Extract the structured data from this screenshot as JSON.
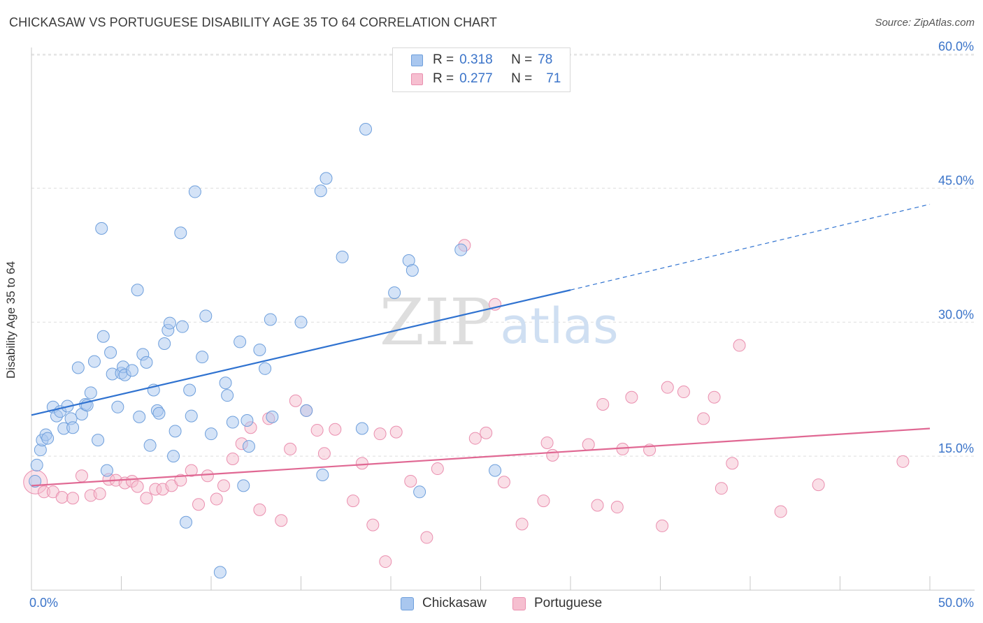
{
  "title": "CHICKASAW VS PORTUGUESE DISABILITY AGE 35 TO 64 CORRELATION CHART",
  "source": "Source: ZipAtlas.com",
  "watermark": {
    "zip": "ZIP",
    "atlas": "atlas"
  },
  "colors": {
    "chickasaw_fill": "#a9c7ef",
    "chickasaw_stroke": "#6e9fdc",
    "chickasaw_line": "#2f72d0",
    "portuguese_fill": "#f6bfd0",
    "portuguese_stroke": "#ea8faf",
    "portuguese_line": "#e06893",
    "axis_text": "#3b74c9",
    "grid": "#dddddd"
  },
  "legend": {
    "rows": [
      {
        "r_label": "R =",
        "r_value": "0.318",
        "n_label": "N =",
        "n_value": "78"
      },
      {
        "r_label": "R =",
        "r_value": "0.277",
        "n_label": "N =",
        "n_value": "71"
      }
    ]
  },
  "chart_data": {
    "type": "scatter",
    "title": "CHICKASAW VS PORTUGUESE DISABILITY AGE 35 TO 64 CORRELATION CHART",
    "xlabel": "",
    "ylabel": "Disability Age 35 to 64",
    "xlim": [
      0,
      50
    ],
    "ylim": [
      0,
      62
    ],
    "x_tick_labels": [
      "0.0%",
      "50.0%"
    ],
    "y_ticks": [
      15,
      30,
      45,
      60
    ],
    "y_tick_labels": [
      "15.0%",
      "30.0%",
      "45.0%",
      "60.0%"
    ],
    "grid": true,
    "legend_position": "top-center",
    "series": [
      {
        "name": "Chickasaw",
        "r": 0.318,
        "n": 78,
        "trend": {
          "x0": 0,
          "y0": 19.6,
          "x1": 30,
          "y1": 33.6,
          "dashed_to": {
            "x": 50,
            "y": 43.2
          }
        },
        "points": [
          [
            0.2,
            12.2
          ],
          [
            0.3,
            14.0
          ],
          [
            0.5,
            15.7
          ],
          [
            0.6,
            16.8
          ],
          [
            0.8,
            17.4
          ],
          [
            0.9,
            17.0
          ],
          [
            1.2,
            20.5
          ],
          [
            1.4,
            19.5
          ],
          [
            1.6,
            20.0
          ],
          [
            1.8,
            18.1
          ],
          [
            2.0,
            20.6
          ],
          [
            2.2,
            19.2
          ],
          [
            2.3,
            18.2
          ],
          [
            2.6,
            24.9
          ],
          [
            2.8,
            19.7
          ],
          [
            3.0,
            20.8
          ],
          [
            3.1,
            20.7
          ],
          [
            3.3,
            22.1
          ],
          [
            3.5,
            25.6
          ],
          [
            3.7,
            16.8
          ],
          [
            3.9,
            40.5
          ],
          [
            4.0,
            28.4
          ],
          [
            4.2,
            13.4
          ],
          [
            4.4,
            26.6
          ],
          [
            4.5,
            24.2
          ],
          [
            4.8,
            20.5
          ],
          [
            5.0,
            24.3
          ],
          [
            5.1,
            25.0
          ],
          [
            5.2,
            24.1
          ],
          [
            5.6,
            24.6
          ],
          [
            5.9,
            33.6
          ],
          [
            6.0,
            19.4
          ],
          [
            6.2,
            26.4
          ],
          [
            6.4,
            25.5
          ],
          [
            6.6,
            16.2
          ],
          [
            6.8,
            22.4
          ],
          [
            7.0,
            20.1
          ],
          [
            7.1,
            19.8
          ],
          [
            7.4,
            27.6
          ],
          [
            7.6,
            29.1
          ],
          [
            7.7,
            29.9
          ],
          [
            7.9,
            15.0
          ],
          [
            8.0,
            17.8
          ],
          [
            8.3,
            40.0
          ],
          [
            8.4,
            29.5
          ],
          [
            8.6,
            7.6
          ],
          [
            8.8,
            22.4
          ],
          [
            8.9,
            19.5
          ],
          [
            9.1,
            44.6
          ],
          [
            9.5,
            26.1
          ],
          [
            9.7,
            30.7
          ],
          [
            10.0,
            17.5
          ],
          [
            10.5,
            2.0
          ],
          [
            10.8,
            23.2
          ],
          [
            10.9,
            21.8
          ],
          [
            11.2,
            18.8
          ],
          [
            11.6,
            27.8
          ],
          [
            11.8,
            11.7
          ],
          [
            12.0,
            19.0
          ],
          [
            12.1,
            16.1
          ],
          [
            12.7,
            26.9
          ],
          [
            13.0,
            24.8
          ],
          [
            13.3,
            30.3
          ],
          [
            13.4,
            19.4
          ],
          [
            15.0,
            30.0
          ],
          [
            15.3,
            20.1
          ],
          [
            16.1,
            44.7
          ],
          [
            16.2,
            12.9
          ],
          [
            16.4,
            46.1
          ],
          [
            17.3,
            37.3
          ],
          [
            18.4,
            18.1
          ],
          [
            18.6,
            51.6
          ],
          [
            20.2,
            33.3
          ],
          [
            21.0,
            36.9
          ],
          [
            21.2,
            35.8
          ],
          [
            21.6,
            11.0
          ],
          [
            23.9,
            38.1
          ],
          [
            25.8,
            13.4
          ]
        ]
      },
      {
        "name": "Portuguese",
        "r": 0.277,
        "n": 71,
        "trend": {
          "x0": 0,
          "y0": 11.7,
          "x1": 50,
          "y1": 18.1
        },
        "points": [
          [
            0.3,
            12.1
          ],
          [
            0.7,
            11.0
          ],
          [
            1.2,
            11.0
          ],
          [
            1.7,
            10.4
          ],
          [
            2.3,
            10.3
          ],
          [
            2.8,
            12.8
          ],
          [
            3.3,
            10.6
          ],
          [
            3.8,
            10.8
          ],
          [
            4.3,
            12.4
          ],
          [
            4.7,
            12.3
          ],
          [
            5.2,
            12.0
          ],
          [
            5.6,
            12.2
          ],
          [
            5.9,
            11.6
          ],
          [
            6.4,
            10.3
          ],
          [
            6.9,
            11.3
          ],
          [
            7.3,
            11.3
          ],
          [
            7.8,
            11.7
          ],
          [
            8.3,
            12.3
          ],
          [
            8.9,
            13.4
          ],
          [
            9.3,
            9.6
          ],
          [
            9.8,
            12.8
          ],
          [
            10.3,
            10.2
          ],
          [
            10.7,
            11.7
          ],
          [
            11.2,
            14.7
          ],
          [
            11.7,
            16.4
          ],
          [
            12.2,
            18.2
          ],
          [
            12.7,
            9.0
          ],
          [
            13.2,
            19.2
          ],
          [
            13.9,
            7.8
          ],
          [
            14.4,
            15.8
          ],
          [
            14.7,
            21.2
          ],
          [
            15.3,
            20.1
          ],
          [
            15.9,
            17.9
          ],
          [
            16.3,
            15.3
          ],
          [
            16.9,
            18.0
          ],
          [
            17.9,
            10.0
          ],
          [
            18.4,
            14.2
          ],
          [
            19.0,
            7.3
          ],
          [
            19.4,
            17.5
          ],
          [
            19.7,
            3.2
          ],
          [
            20.3,
            17.7
          ],
          [
            21.1,
            12.2
          ],
          [
            22.0,
            5.9
          ],
          [
            22.6,
            13.6
          ],
          [
            24.1,
            38.6
          ],
          [
            24.7,
            17.0
          ],
          [
            25.3,
            17.6
          ],
          [
            25.8,
            32.0
          ],
          [
            26.3,
            12.1
          ],
          [
            27.3,
            7.4
          ],
          [
            28.5,
            10.0
          ],
          [
            28.7,
            16.5
          ],
          [
            29.0,
            15.1
          ],
          [
            31.0,
            16.3
          ],
          [
            31.5,
            9.5
          ],
          [
            31.8,
            20.8
          ],
          [
            32.6,
            9.3
          ],
          [
            32.9,
            15.8
          ],
          [
            33.4,
            21.6
          ],
          [
            34.4,
            15.7
          ],
          [
            35.1,
            7.2
          ],
          [
            35.4,
            22.7
          ],
          [
            36.3,
            22.2
          ],
          [
            37.4,
            19.2
          ],
          [
            38.0,
            21.6
          ],
          [
            38.4,
            11.4
          ],
          [
            39.0,
            14.2
          ],
          [
            39.4,
            27.4
          ],
          [
            41.7,
            8.8
          ],
          [
            43.8,
            11.8
          ],
          [
            48.5,
            14.4
          ]
        ]
      }
    ]
  },
  "bottom_legend": [
    {
      "label": "Chickasaw"
    },
    {
      "label": "Portuguese"
    }
  ]
}
